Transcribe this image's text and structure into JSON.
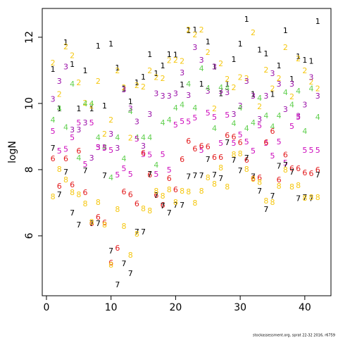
{
  "chart_data": {
    "type": "scatter",
    "ylabel": "logN",
    "footer": "stockassessment.org, sprat 22-32 2016, r6759",
    "x": [
      1,
      2,
      3,
      4,
      5,
      6,
      7,
      8,
      9,
      10,
      11,
      12,
      13,
      14,
      15,
      16,
      17,
      18,
      19,
      20,
      21,
      22,
      23,
      24,
      25,
      26,
      27,
      28,
      29,
      30,
      31,
      32,
      33,
      34,
      35,
      36,
      37,
      38,
      39,
      40,
      41,
      42
    ],
    "xlim": [
      -0.65,
      44.05
    ],
    "ylim": [
      4.19,
      12.87
    ],
    "xticks": [
      0,
      10,
      20,
      30,
      40
    ],
    "yticks": [
      6,
      8,
      10,
      12
    ],
    "series": [
      {
        "name": "1",
        "color": "#000000",
        "values": [
          11.02,
          9.83,
          11.83,
          11.17,
          9.83,
          10.98,
          9.83,
          11.72,
          9.91,
          11.79,
          11.06,
          10.43,
          10.04,
          10.62,
          10.79,
          11.47,
          10.89,
          11.13,
          11.47,
          11.45,
          10.55,
          12.19,
          12.21,
          10.57,
          11.85,
          11.09,
          10.28,
          10.57,
          11.32,
          11.79,
          12.53,
          10.26,
          11.6,
          11.49,
          10.26,
          11.13,
          12.19,
          10.72,
          11.4,
          11.3,
          11.26,
          12.47
        ]
      },
      {
        "name": "2",
        "color": "#F5C710",
        "values": [
          11.21,
          10.26,
          11.7,
          11.43,
          10.62,
          10.0,
          9.91,
          10.66,
          9.06,
          9.49,
          10.98,
          10.47,
          8.94,
          10.53,
          10.49,
          10.98,
          10.77,
          10.74,
          11.28,
          11.3,
          11.26,
          12.21,
          12.06,
          12.21,
          11.53,
          9.83,
          11.19,
          10.72,
          10.47,
          10.77,
          10.74,
          12.13,
          9.89,
          11.0,
          10.43,
          10.74,
          11.68,
          10.19,
          11.34,
          10.98,
          10.64,
          10.43
        ]
      },
      {
        "name": "3",
        "color": "#9A0FA8",
        "values": [
          10.11,
          10.66,
          11.09,
          9.19,
          9.19,
          9.4,
          8.34,
          8.66,
          8.66,
          9.06,
          8.64,
          10.4,
          9.83,
          9.43,
          8.7,
          9.66,
          10.28,
          10.21,
          10.21,
          10.28,
          10.91,
          10.23,
          11.68,
          11.3,
          10.36,
          11.09,
          10.36,
          10.32,
          9.66,
          9.91,
          10.66,
          10.21,
          9.51,
          10.21,
          10.89,
          10.57,
          9.81,
          10.57,
          9.6,
          9.94,
          10.77,
          10.21
        ]
      },
      {
        "name": "4",
        "color": "#61D04F",
        "values": [
          9.49,
          9.83,
          9.26,
          10.57,
          8.34,
          9.98,
          9.98,
          8.96,
          8.66,
          7.74,
          8.96,
          8.32,
          9.74,
          8.96,
          8.96,
          8.96,
          8.13,
          9.4,
          9.49,
          9.85,
          9.94,
          10.57,
          9.85,
          11.04,
          10.45,
          9.23,
          10.47,
          10.45,
          9.38,
          9.85,
          9.23,
          9.4,
          10.15,
          9.62,
          9.28,
          9.62,
          10.32,
          9.94,
          10.36,
          9.15,
          10.43,
          9.57
        ]
      },
      {
        "name": "5",
        "color": "#CD0BBC",
        "values": [
          9.15,
          8.55,
          8.6,
          8.96,
          9.4,
          8.15,
          9.4,
          8.66,
          8.64,
          8.57,
          7.83,
          8.02,
          7.85,
          8.91,
          8.45,
          8.43,
          7.85,
          8.45,
          7.98,
          9.34,
          9.45,
          9.43,
          9.55,
          8.57,
          9.7,
          9.57,
          8.79,
          9.64,
          8.79,
          9.04,
          8.83,
          8.55,
          9.32,
          8.79,
          8.4,
          8.83,
          8.19,
          9.3,
          9.57,
          8.57,
          8.57,
          8.57
        ]
      },
      {
        "name": "6",
        "color": "#E31A1C",
        "values": [
          8.32,
          7.49,
          8.32,
          7.53,
          8.55,
          7.3,
          6.36,
          6.55,
          6.38,
          5.17,
          5.62,
          7.32,
          7.23,
          6.96,
          8.49,
          7.83,
          7.21,
          6.91,
          7.72,
          7.38,
          8.3,
          8.85,
          8.62,
          8.7,
          8.68,
          8.36,
          8.36,
          9.02,
          8.98,
          8.81,
          8.28,
          7.72,
          7.74,
          8.81,
          9.15,
          7.68,
          8.43,
          8.02,
          8.02,
          7.89,
          7.87,
          7.98
        ]
      },
      {
        "name": "7",
        "color": "#000000",
        "values": [
          8.64,
          7.23,
          7.91,
          6.68,
          6.32,
          7.96,
          6.36,
          6.36,
          7.81,
          5.53,
          4.51,
          5.15,
          4.85,
          6.11,
          6.11,
          7.85,
          7.21,
          6.89,
          6.68,
          6.91,
          6.91,
          7.77,
          7.81,
          7.81,
          8.3,
          7.83,
          7.72,
          8.81,
          8.28,
          7.96,
          8.34,
          7.77,
          7.34,
          6.79,
          7.19,
          8.09,
          8.13,
          7.91,
          7.11,
          7.15,
          7.11,
          7.83
        ]
      },
      {
        "name": "8",
        "color": "#F5C710",
        "values": [
          7.17,
          8.0,
          7.68,
          7.3,
          7.23,
          6.96,
          6.4,
          7.0,
          6.32,
          5.11,
          6.79,
          6.28,
          5.4,
          6.04,
          6.81,
          6.74,
          7.34,
          7.19,
          7.38,
          7.0,
          7.34,
          7.32,
          6.98,
          7.34,
          7.74,
          7.55,
          8.04,
          7.47,
          8.45,
          8.47,
          8.0,
          7.7,
          7.6,
          7.04,
          7.0,
          7.49,
          7.98,
          7.47,
          7.51,
          7.13,
          7.15,
          7.15
        ]
      }
    ]
  }
}
